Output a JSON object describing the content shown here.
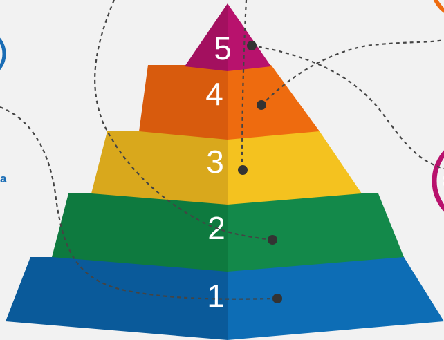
{
  "diagram": {
    "side_fragment": "a",
    "levels": [
      {
        "number": "1",
        "color_left": "#0a5a9a",
        "color_right": "#0d6db5"
      },
      {
        "number": "2",
        "color_left": "#0e7a3f",
        "color_right": "#13894a"
      },
      {
        "number": "3",
        "color_left": "#d9a81c",
        "color_right": "#f4c21f"
      },
      {
        "number": "4",
        "color_left": "#d85b0d",
        "color_right": "#ee6b0f"
      },
      {
        "number": "5",
        "color_left": "#a3105f",
        "color_right": "#b8126d"
      }
    ],
    "circle_colors": {
      "left": "#1a6db5",
      "top_right": "#ee6b0f",
      "right": "#b8126d"
    }
  }
}
